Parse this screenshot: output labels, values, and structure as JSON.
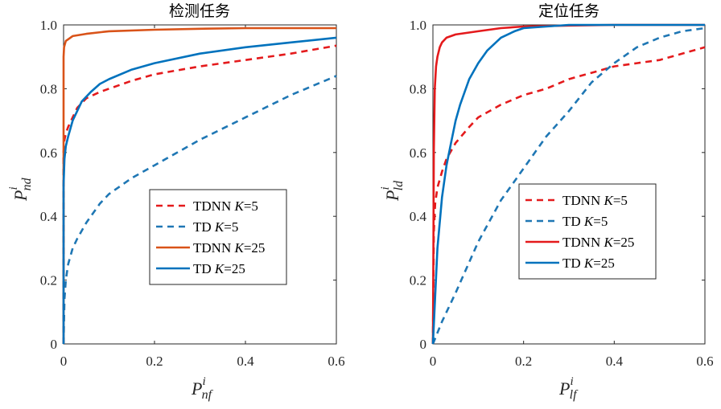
{
  "colors": {
    "tdnn_k5": "#e41a1c",
    "td_k5": "#1f77b4",
    "tdnn_k25_detect": "#d95319",
    "td_k25": "#0072bd",
    "tdnn_k25_locate": "#e41a1c"
  },
  "chart_data": [
    {
      "type": "line",
      "title": "检测任务",
      "xlabel": {
        "main": "P",
        "sup": "i",
        "sub": "nf"
      },
      "ylabel": {
        "main": "P",
        "sup": "i",
        "sub": "nd"
      },
      "xlim": [
        0,
        0.6
      ],
      "ylim": [
        0,
        1.0
      ],
      "xticks": [
        "0",
        "0.2",
        "0.4",
        "0.6"
      ],
      "yticks": [
        "0",
        "0.2",
        "0.4",
        "0.6",
        "0.8",
        "1.0"
      ],
      "grid": false,
      "legend_position": "center-right",
      "series": [
        {
          "name": "TDNN K=5",
          "label_prefix": "TDNN ",
          "label_k": "K",
          "label_value": "=5",
          "color_key": "tdnn_k5",
          "dash": true,
          "x": [
            0,
            0,
            0.002,
            0.005,
            0.01,
            0.02,
            0.03,
            0.05,
            0.08,
            0.1,
            0.15,
            0.2,
            0.3,
            0.4,
            0.5,
            0.6
          ],
          "y": [
            0,
            0.6,
            0.64,
            0.66,
            0.68,
            0.71,
            0.74,
            0.77,
            0.79,
            0.8,
            0.825,
            0.845,
            0.87,
            0.89,
            0.91,
            0.935
          ]
        },
        {
          "name": "TD K=5",
          "label_prefix": "TD ",
          "label_k": "K",
          "label_value": "=5",
          "color_key": "td_k5",
          "dash": true,
          "x": [
            0,
            0.002,
            0.005,
            0.01,
            0.02,
            0.03,
            0.05,
            0.08,
            0.1,
            0.15,
            0.2,
            0.3,
            0.4,
            0.5,
            0.6
          ],
          "y": [
            0,
            0.14,
            0.2,
            0.25,
            0.3,
            0.33,
            0.38,
            0.44,
            0.47,
            0.52,
            0.56,
            0.64,
            0.71,
            0.78,
            0.84
          ]
        },
        {
          "name": "TDNN K=25",
          "label_prefix": "TDNN ",
          "label_k": "K",
          "label_value": "=25",
          "color_key": "tdnn_k25_detect",
          "dash": false,
          "x": [
            0,
            0,
            0.001,
            0.003,
            0.005,
            0.01,
            0.02,
            0.05,
            0.1,
            0.2,
            0.3,
            0.4,
            0.6
          ],
          "y": [
            0,
            0.9,
            0.93,
            0.94,
            0.95,
            0.955,
            0.965,
            0.972,
            0.98,
            0.985,
            0.988,
            0.99,
            0.99
          ]
        },
        {
          "name": "TD K=25",
          "label_prefix": "TD ",
          "label_k": "K",
          "label_value": "=25",
          "color_key": "td_k25",
          "dash": false,
          "x": [
            0,
            0,
            0.002,
            0.005,
            0.01,
            0.02,
            0.04,
            0.06,
            0.08,
            0.1,
            0.15,
            0.2,
            0.3,
            0.4,
            0.5,
            0.6
          ],
          "y": [
            0,
            0.5,
            0.58,
            0.62,
            0.65,
            0.7,
            0.76,
            0.79,
            0.815,
            0.83,
            0.86,
            0.88,
            0.91,
            0.93,
            0.945,
            0.96
          ]
        }
      ]
    },
    {
      "type": "line",
      "title": "定位任务",
      "xlabel": {
        "main": "P",
        "sup": "i",
        "sub": "lf"
      },
      "ylabel": {
        "main": "P",
        "sup": "i",
        "sub": "ld"
      },
      "xlim": [
        0,
        0.6
      ],
      "ylim": [
        0,
        1.0
      ],
      "xticks": [
        "0",
        "0.2",
        "0.4",
        "0.6"
      ],
      "yticks": [
        "0",
        "0.2",
        "0.4",
        "0.6",
        "0.8",
        "1.0"
      ],
      "grid": false,
      "legend_position": "center-right",
      "series": [
        {
          "name": "TDNN K=5",
          "label_prefix": "TDNN ",
          "label_k": "K",
          "label_value": "=5",
          "color_key": "tdnn_k5",
          "dash": true,
          "x": [
            0,
            0.002,
            0.005,
            0.01,
            0.02,
            0.03,
            0.05,
            0.08,
            0.1,
            0.15,
            0.2,
            0.25,
            0.3,
            0.35,
            0.4,
            0.45,
            0.5,
            0.55,
            0.6
          ],
          "y": [
            0,
            0.35,
            0.44,
            0.49,
            0.54,
            0.58,
            0.63,
            0.68,
            0.71,
            0.75,
            0.78,
            0.8,
            0.83,
            0.85,
            0.87,
            0.88,
            0.89,
            0.91,
            0.93
          ]
        },
        {
          "name": "TD K=5",
          "label_prefix": "TD ",
          "label_k": "K",
          "label_value": "=5",
          "color_key": "td_k5",
          "dash": true,
          "x": [
            0,
            0.02,
            0.05,
            0.1,
            0.15,
            0.2,
            0.25,
            0.3,
            0.35,
            0.4,
            0.45,
            0.5,
            0.55,
            0.6
          ],
          "y": [
            0,
            0.07,
            0.16,
            0.32,
            0.45,
            0.55,
            0.65,
            0.73,
            0.82,
            0.88,
            0.93,
            0.96,
            0.98,
            0.99
          ]
        },
        {
          "name": "TDNN K=25",
          "label_prefix": "TDNN ",
          "label_k": "K",
          "label_value": "=25",
          "color_key": "tdnn_k25_locate",
          "dash": false,
          "x": [
            0,
            0.001,
            0.002,
            0.004,
            0.007,
            0.01,
            0.015,
            0.02,
            0.03,
            0.05,
            0.1,
            0.15,
            0.2,
            0.3,
            0.4,
            0.5,
            0.6
          ],
          "y": [
            0,
            0.3,
            0.6,
            0.8,
            0.87,
            0.9,
            0.93,
            0.945,
            0.96,
            0.97,
            0.98,
            0.99,
            0.995,
            0.998,
            1.0,
            1.0,
            1.0
          ]
        },
        {
          "name": "TD K=25",
          "label_prefix": "TD ",
          "label_k": "K",
          "label_value": "=25",
          "color_key": "td_k25",
          "dash": false,
          "x": [
            0,
            0.005,
            0.01,
            0.02,
            0.03,
            0.04,
            0.05,
            0.06,
            0.08,
            0.1,
            0.12,
            0.15,
            0.18,
            0.2,
            0.25,
            0.3,
            0.4,
            0.6
          ],
          "y": [
            0,
            0.15,
            0.3,
            0.46,
            0.56,
            0.63,
            0.7,
            0.75,
            0.83,
            0.88,
            0.92,
            0.96,
            0.98,
            0.99,
            0.995,
            1.0,
            1.0,
            1.0
          ]
        }
      ]
    }
  ]
}
